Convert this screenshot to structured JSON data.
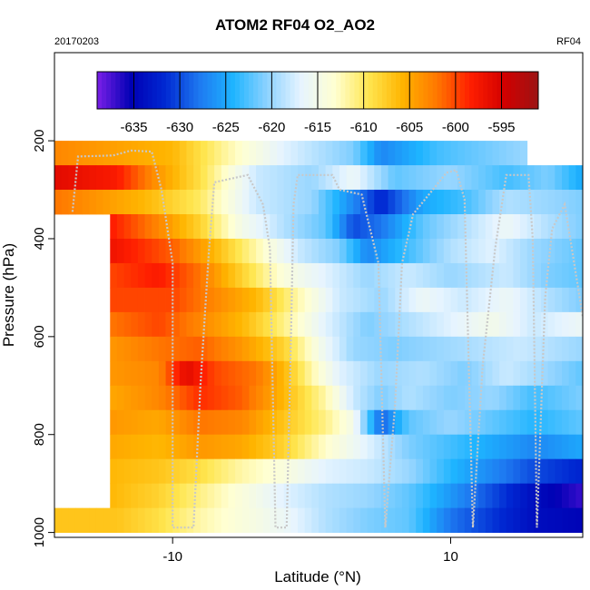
{
  "header": {
    "title": "ATOM2 RF04 O2_AO2",
    "date_label": "20170203",
    "flight_label": "RF04"
  },
  "chart_data": {
    "type": "heatmap",
    "title": "ATOM2 RF04 O2_AO2",
    "xlabel": "Latitude (°N)",
    "ylabel": "Pressure (hPa)",
    "xlim": [
      -18.5,
      19.5
    ],
    "ylim": [
      1010,
      20
    ],
    "y_reversed": true,
    "x_ticks": [
      -10,
      10
    ],
    "x_tick_labels": [
      "-10",
      "10"
    ],
    "y_ticks": [
      200,
      400,
      600,
      800,
      1000
    ],
    "y_tick_labels": [
      "200",
      "400",
      "600",
      "800",
      "1000"
    ],
    "colorbar": {
      "min": -639,
      "max": -591,
      "ticks": [
        -635,
        -630,
        -625,
        -620,
        -615,
        -610,
        -605,
        -600,
        -595
      ],
      "tick_labels": [
        "-635",
        "-630",
        "-625",
        "-620",
        "-615",
        "-610",
        "-605",
        "-600",
        "-595"
      ],
      "colors": [
        "#7a1fe8",
        "#0000b4",
        "#0028d2",
        "#1e78f0",
        "#1eb4ff",
        "#8cd2ff",
        "#e6f4ff",
        "#ffffd2",
        "#ffe650",
        "#ffb400",
        "#ff7800",
        "#ff1e00",
        "#d20000",
        "#9b1414"
      ]
    },
    "pressure_levels": [
      200,
      250,
      300,
      350,
      400,
      450,
      500,
      550,
      600,
      650,
      700,
      750,
      800,
      850,
      900,
      950,
      1000
    ],
    "latitude_range": [
      -18.5,
      19.5
    ],
    "bands": [
      {
        "p": 225,
        "lat0": -18.5,
        "lat1": 15.5,
        "anchors": [
          [
            -18.5,
            -603
          ],
          [
            -10,
            -606
          ],
          [
            -6,
            -612
          ],
          [
            -2,
            -617
          ],
          [
            3,
            -621
          ],
          [
            5,
            -627
          ],
          [
            9,
            -623
          ],
          [
            15.5,
            -620
          ]
        ]
      },
      {
        "p": 275,
        "lat0": -18.5,
        "lat1": 19.5,
        "anchors": [
          [
            -18.5,
            -596
          ],
          [
            -14,
            -598
          ],
          [
            -11,
            -604
          ],
          [
            -8,
            -609
          ],
          [
            -4,
            -618
          ],
          [
            0,
            -620
          ],
          [
            3,
            -616
          ],
          [
            6,
            -622
          ],
          [
            10,
            -620
          ],
          [
            14,
            -623
          ],
          [
            17,
            -621
          ],
          [
            19.5,
            -625
          ]
        ]
      },
      {
        "p": 325,
        "lat0": -18.5,
        "lat1": 19.5,
        "anchors": [
          [
            -18.5,
            -602
          ],
          [
            -12,
            -606
          ],
          [
            -8,
            -610
          ],
          [
            -4,
            -618
          ],
          [
            0,
            -620
          ],
          [
            3,
            -627
          ],
          [
            5,
            -632
          ],
          [
            8,
            -625
          ],
          [
            11,
            -623
          ],
          [
            14,
            -619
          ],
          [
            17,
            -620
          ],
          [
            19.5,
            -621
          ]
        ]
      },
      {
        "p": 375,
        "lat0": -14.5,
        "lat1": 19.5,
        "anchors": [
          [
            -14.5,
            -598
          ],
          [
            -11,
            -603
          ],
          [
            -8,
            -608
          ],
          [
            -5,
            -615
          ],
          [
            -2,
            -619
          ],
          [
            1,
            -622
          ],
          [
            3,
            -630
          ],
          [
            5,
            -628
          ],
          [
            8,
            -622
          ],
          [
            11,
            -619
          ],
          [
            14,
            -616
          ],
          [
            17,
            -619
          ],
          [
            19.5,
            -621
          ]
        ]
      },
      {
        "p": 425,
        "lat0": -14.5,
        "lat1": 19.5,
        "anchors": [
          [
            -14.5,
            -597
          ],
          [
            -10,
            -601
          ],
          [
            -7,
            -606
          ],
          [
            -4,
            -612
          ],
          [
            -1,
            -618
          ],
          [
            2,
            -621
          ],
          [
            4,
            -627
          ],
          [
            7,
            -623
          ],
          [
            10,
            -619
          ],
          [
            13,
            -617
          ],
          [
            16,
            -620
          ],
          [
            19.5,
            -622
          ]
        ]
      },
      {
        "p": 475,
        "lat0": -14.5,
        "lat1": 19.5,
        "anchors": [
          [
            -14.5,
            -600
          ],
          [
            -11,
            -598
          ],
          [
            -8,
            -602
          ],
          [
            -5,
            -608
          ],
          [
            -2,
            -614
          ],
          [
            1,
            -617
          ],
          [
            4,
            -620
          ],
          [
            7,
            -618
          ],
          [
            10,
            -620
          ],
          [
            14,
            -618
          ],
          [
            17,
            -621
          ],
          [
            19.5,
            -622
          ]
        ]
      },
      {
        "p": 525,
        "lat0": -14.5,
        "lat1": 19.5,
        "anchors": [
          [
            -14.5,
            -600
          ],
          [
            -10,
            -600
          ],
          [
            -7,
            -603
          ],
          [
            -4,
            -606
          ],
          [
            -1,
            -612
          ],
          [
            2,
            -618
          ],
          [
            5,
            -620
          ],
          [
            8,
            -616
          ],
          [
            11,
            -618
          ],
          [
            14,
            -616
          ],
          [
            17,
            -619
          ],
          [
            19.5,
            -621
          ]
        ]
      },
      {
        "p": 575,
        "lat0": -14.5,
        "lat1": 19.5,
        "anchors": [
          [
            -14.5,
            -602
          ],
          [
            -11,
            -600
          ],
          [
            -8,
            -603
          ],
          [
            -5,
            -606
          ],
          [
            -2,
            -611
          ],
          [
            1,
            -617
          ],
          [
            4,
            -621
          ],
          [
            7,
            -619
          ],
          [
            10,
            -617
          ],
          [
            13,
            -615
          ],
          [
            16,
            -618
          ],
          [
            19.5,
            -616
          ]
        ]
      },
      {
        "p": 625,
        "lat0": -14.5,
        "lat1": 19.5,
        "anchors": [
          [
            -14.5,
            -604
          ],
          [
            -11,
            -602
          ],
          [
            -8,
            -601
          ],
          [
            -5,
            -604
          ],
          [
            -2,
            -608
          ],
          [
            1,
            -616
          ],
          [
            3,
            -620
          ],
          [
            6,
            -621
          ],
          [
            9,
            -620
          ],
          [
            12,
            -619
          ],
          [
            15,
            -618
          ],
          [
            19.5,
            -620
          ]
        ]
      },
      {
        "p": 675,
        "lat0": -14.5,
        "lat1": 19.5,
        "anchors": [
          [
            -14.5,
            -604
          ],
          [
            -11,
            -603
          ],
          [
            -9,
            -596
          ],
          [
            -7,
            -600
          ],
          [
            -4,
            -602
          ],
          [
            -2,
            -606
          ],
          [
            0,
            -612
          ],
          [
            2,
            -617
          ],
          [
            5,
            -620
          ],
          [
            8,
            -619
          ],
          [
            11,
            -621
          ],
          [
            14,
            -618
          ],
          [
            17,
            -620
          ],
          [
            19.5,
            -622
          ]
        ]
      },
      {
        "p": 725,
        "lat0": -14.5,
        "lat1": 19.5,
        "anchors": [
          [
            -14.5,
            -605
          ],
          [
            -11,
            -603
          ],
          [
            -8,
            -599
          ],
          [
            -5,
            -601
          ],
          [
            -2,
            -606
          ],
          [
            1,
            -612
          ],
          [
            3,
            -618
          ],
          [
            5,
            -621
          ],
          [
            7,
            -619
          ],
          [
            10,
            -621
          ],
          [
            13,
            -620
          ],
          [
            16,
            -623
          ],
          [
            19.5,
            -621
          ]
        ]
      },
      {
        "p": 775,
        "lat0": -14.5,
        "lat1": 19.5,
        "anchors": [
          [
            -14.5,
            -604
          ],
          [
            -11,
            -605
          ],
          [
            -8,
            -602
          ],
          [
            -5,
            -603
          ],
          [
            -2,
            -607
          ],
          [
            1,
            -611
          ],
          [
            3,
            -615
          ],
          [
            5,
            -629
          ],
          [
            7,
            -622
          ],
          [
            10,
            -620
          ],
          [
            13,
            -622
          ],
          [
            16,
            -624
          ],
          [
            19.5,
            -622
          ]
        ]
      },
      {
        "p": 825,
        "lat0": -14.5,
        "lat1": 19.5,
        "anchors": [
          [
            -14.5,
            -605
          ],
          [
            -11,
            -606
          ],
          [
            -8,
            -604
          ],
          [
            -5,
            -605
          ],
          [
            -2,
            -608
          ],
          [
            1,
            -613
          ],
          [
            4,
            -617
          ],
          [
            7,
            -621
          ],
          [
            10,
            -623
          ],
          [
            13,
            -625
          ],
          [
            16,
            -627
          ],
          [
            19.5,
            -625
          ]
        ]
      },
      {
        "p": 875,
        "lat0": -14.5,
        "lat1": 19.5,
        "anchors": [
          [
            -14.5,
            -606
          ],
          [
            -11,
            -607
          ],
          [
            -8,
            -609
          ],
          [
            -5,
            -612
          ],
          [
            -2,
            -614
          ],
          [
            1,
            -617
          ],
          [
            4,
            -618
          ],
          [
            7,
            -620
          ],
          [
            10,
            -624
          ],
          [
            13,
            -627
          ],
          [
            16,
            -630
          ],
          [
            19.5,
            -632
          ]
        ]
      },
      {
        "p": 925,
        "lat0": -14.5,
        "lat1": 19.5,
        "anchors": [
          [
            -14.5,
            -606
          ],
          [
            -11,
            -608
          ],
          [
            -8,
            -611
          ],
          [
            -5,
            -614
          ],
          [
            -2,
            -617
          ],
          [
            1,
            -619
          ],
          [
            4,
            -620
          ],
          [
            7,
            -622
          ],
          [
            10,
            -626
          ],
          [
            13,
            -630
          ],
          [
            16,
            -634
          ],
          [
            19.5,
            -637
          ]
        ]
      },
      {
        "p": 975,
        "lat0": -18.5,
        "lat1": 19.5,
        "anchors": [
          [
            -18.5,
            -607
          ],
          [
            -14,
            -607
          ],
          [
            -11,
            -609
          ],
          [
            -8,
            -612
          ],
          [
            -5,
            -614
          ],
          [
            -2,
            -616
          ],
          [
            1,
            -619
          ],
          [
            4,
            -621
          ],
          [
            7,
            -622
          ],
          [
            10,
            -628
          ],
          [
            13,
            -631
          ],
          [
            16,
            -634
          ],
          [
            19.5,
            -635
          ]
        ]
      }
    ],
    "flight_track": [
      [
        -17.2,
        345
      ],
      [
        -16.8,
        232
      ],
      [
        -14.3,
        230
      ],
      [
        -13,
        220
      ],
      [
        -11.5,
        222
      ],
      [
        -10.8,
        300
      ],
      [
        -10,
        450
      ],
      [
        -10,
        990
      ],
      [
        -8.5,
        990
      ],
      [
        -8,
        700
      ],
      [
        -7.4,
        430
      ],
      [
        -7,
        285
      ],
      [
        -4.6,
        270
      ],
      [
        -3.5,
        330
      ],
      [
        -3,
        420
      ],
      [
        -2.6,
        990
      ],
      [
        -1.8,
        990
      ],
      [
        -1.5,
        620
      ],
      [
        -1.3,
        330
      ],
      [
        -1,
        270
      ],
      [
        1.5,
        270
      ],
      [
        2,
        300
      ],
      [
        3.6,
        310
      ],
      [
        4.8,
        450
      ],
      [
        5.3,
        990
      ],
      [
        6,
        740
      ],
      [
        6.5,
        450
      ],
      [
        7.3,
        350
      ],
      [
        9.7,
        265
      ],
      [
        10.4,
        260
      ],
      [
        11,
        320
      ],
      [
        11.6,
        990
      ],
      [
        12.3,
        660
      ],
      [
        13.2,
        420
      ],
      [
        14,
        270
      ],
      [
        15.6,
        270
      ],
      [
        15.9,
        400
      ],
      [
        16.2,
        990
      ],
      [
        16.8,
        520
      ],
      [
        17.3,
        380
      ],
      [
        18.2,
        330
      ],
      [
        19,
        470
      ],
      [
        19.5,
        560
      ]
    ]
  }
}
